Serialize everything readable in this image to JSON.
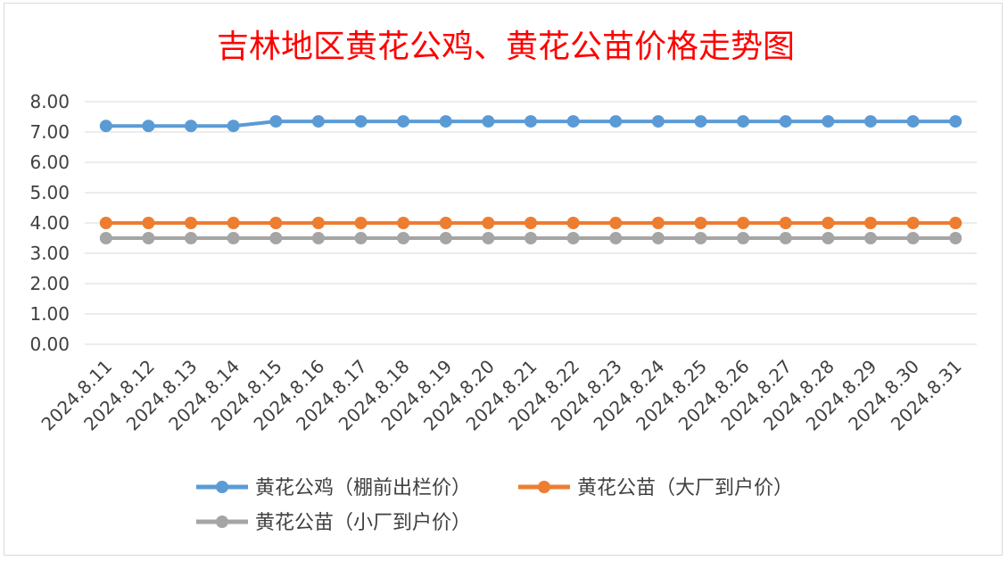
{
  "chart_data": {
    "type": "line",
    "title": "吉林地区黄花公鸡、黄花公苗价格走势图",
    "title_color": "#ff0000",
    "categories": [
      "2024.8.11",
      "2024.8.12",
      "2024.8.13",
      "2024.8.14",
      "2024.8.15",
      "2024.8.16",
      "2024.8.17",
      "2024.8.18",
      "2024.8.19",
      "2024.8.20",
      "2024.8.21",
      "2024.8.22",
      "2024.8.23",
      "2024.8.24",
      "2024.8.25",
      "2024.8.26",
      "2024.8.27",
      "2024.8.28",
      "2024.8.29",
      "2024.8.30",
      "2024.8.31"
    ],
    "y_ticks": [
      "0.00",
      "1.00",
      "2.00",
      "3.00",
      "4.00",
      "5.00",
      "6.00",
      "7.00",
      "8.00"
    ],
    "ylim": [
      0,
      8
    ],
    "grid": true,
    "legend_position": "bottom",
    "series": [
      {
        "name": "黄花公鸡（棚前出栏价）",
        "color": "#5b9bd5",
        "values": [
          7.2,
          7.2,
          7.2,
          7.2,
          7.35,
          7.35,
          7.35,
          7.35,
          7.35,
          7.35,
          7.35,
          7.35,
          7.35,
          7.35,
          7.35,
          7.35,
          7.35,
          7.35,
          7.35,
          7.35,
          7.35
        ]
      },
      {
        "name": "黄花公苗（大厂到户价）",
        "color": "#ed7d31",
        "values": [
          4.0,
          4.0,
          4.0,
          4.0,
          4.0,
          4.0,
          4.0,
          4.0,
          4.0,
          4.0,
          4.0,
          4.0,
          4.0,
          4.0,
          4.0,
          4.0,
          4.0,
          4.0,
          4.0,
          4.0,
          4.0
        ]
      },
      {
        "name": "黄花公苗（小厂到户价）",
        "color": "#a5a5a5",
        "values": [
          3.5,
          3.5,
          3.5,
          3.5,
          3.5,
          3.5,
          3.5,
          3.5,
          3.5,
          3.5,
          3.5,
          3.5,
          3.5,
          3.5,
          3.5,
          3.5,
          3.5,
          3.5,
          3.5,
          3.5,
          3.5
        ]
      }
    ]
  }
}
